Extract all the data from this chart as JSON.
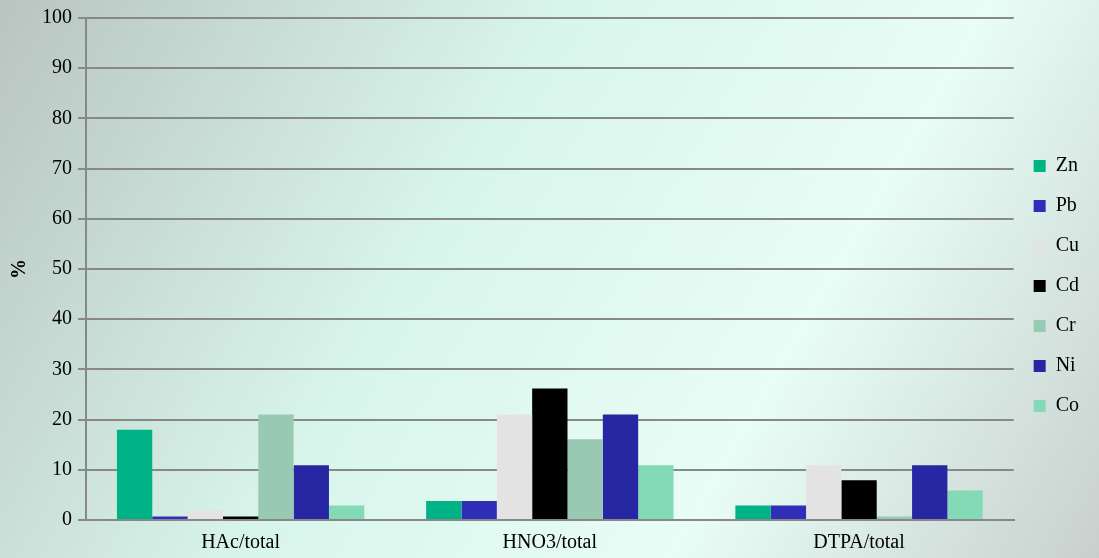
{
  "chart_data": {
    "type": "bar",
    "ylabel": "%",
    "categories": [
      "HAc/total",
      "HNO3/total",
      "DTPA/total"
    ],
    "series": [
      {
        "name": "Zn",
        "color": "#00b386",
        "values": [
          18,
          3.8,
          2.9
        ]
      },
      {
        "name": "Pb",
        "color": "#2e2eb8",
        "values": [
          0.7,
          3.8,
          2.9
        ]
      },
      {
        "name": "Cu",
        "color": "#e3e3e3",
        "values": [
          1.9,
          21,
          10.9
        ]
      },
      {
        "name": "Cd",
        "color": "#000000",
        "values": [
          0.7,
          26.2,
          7.9
        ]
      },
      {
        "name": "Cr",
        "color": "#99c9b3",
        "values": [
          21,
          16.1,
          0.7
        ]
      },
      {
        "name": "Ni",
        "color": "#2727a3",
        "values": [
          10.9,
          21,
          10.9
        ]
      },
      {
        "name": "Co",
        "color": "#84dab6",
        "values": [
          2.9,
          10.9,
          5.9
        ]
      }
    ],
    "ylim": [
      0,
      100
    ],
    "yticks": [
      0,
      10,
      20,
      30,
      40,
      50,
      60,
      70,
      80,
      90,
      100
    ],
    "grid": "y",
    "legend": "right"
  }
}
